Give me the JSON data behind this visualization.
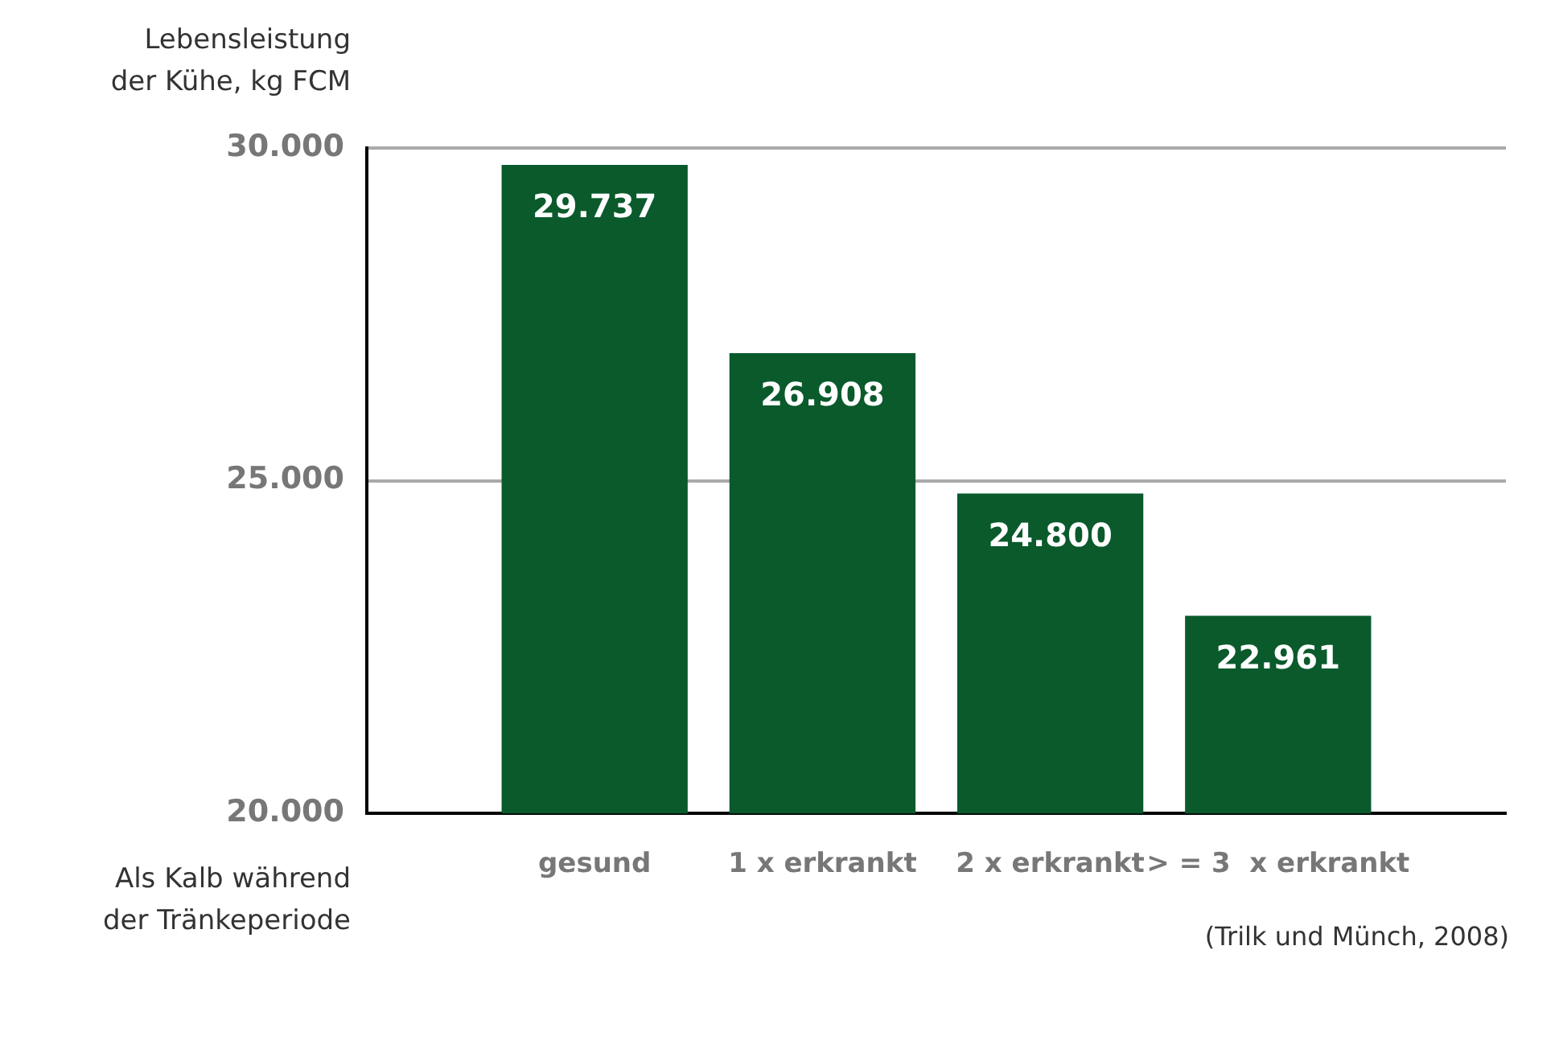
{
  "chart_data": {
    "type": "bar",
    "ylabel": "Lebensleistung\nder Kühe, kg FCM",
    "xlabel": "Als Kalb während\nder Tränkeperiode",
    "categories": [
      "gesund",
      "1 x erkrankt",
      "2 x erkrankt",
      "> = 3  x erkrankt"
    ],
    "values": [
      29737,
      26908,
      24800,
      22961
    ],
    "value_labels": [
      "29.737",
      "26.908",
      "24.800",
      "22.961"
    ],
    "color": "#0a5a2c",
    "ylim": [
      20000,
      30000
    ],
    "yticks": [
      {
        "value": 20000,
        "label": "20.000"
      },
      {
        "value": 25000,
        "label": "25.000"
      },
      {
        "value": 30000,
        "label": "30.000"
      }
    ],
    "grid": "y",
    "legend": false,
    "annotations": [
      "(Trilk und Münch, 2008)"
    ]
  }
}
